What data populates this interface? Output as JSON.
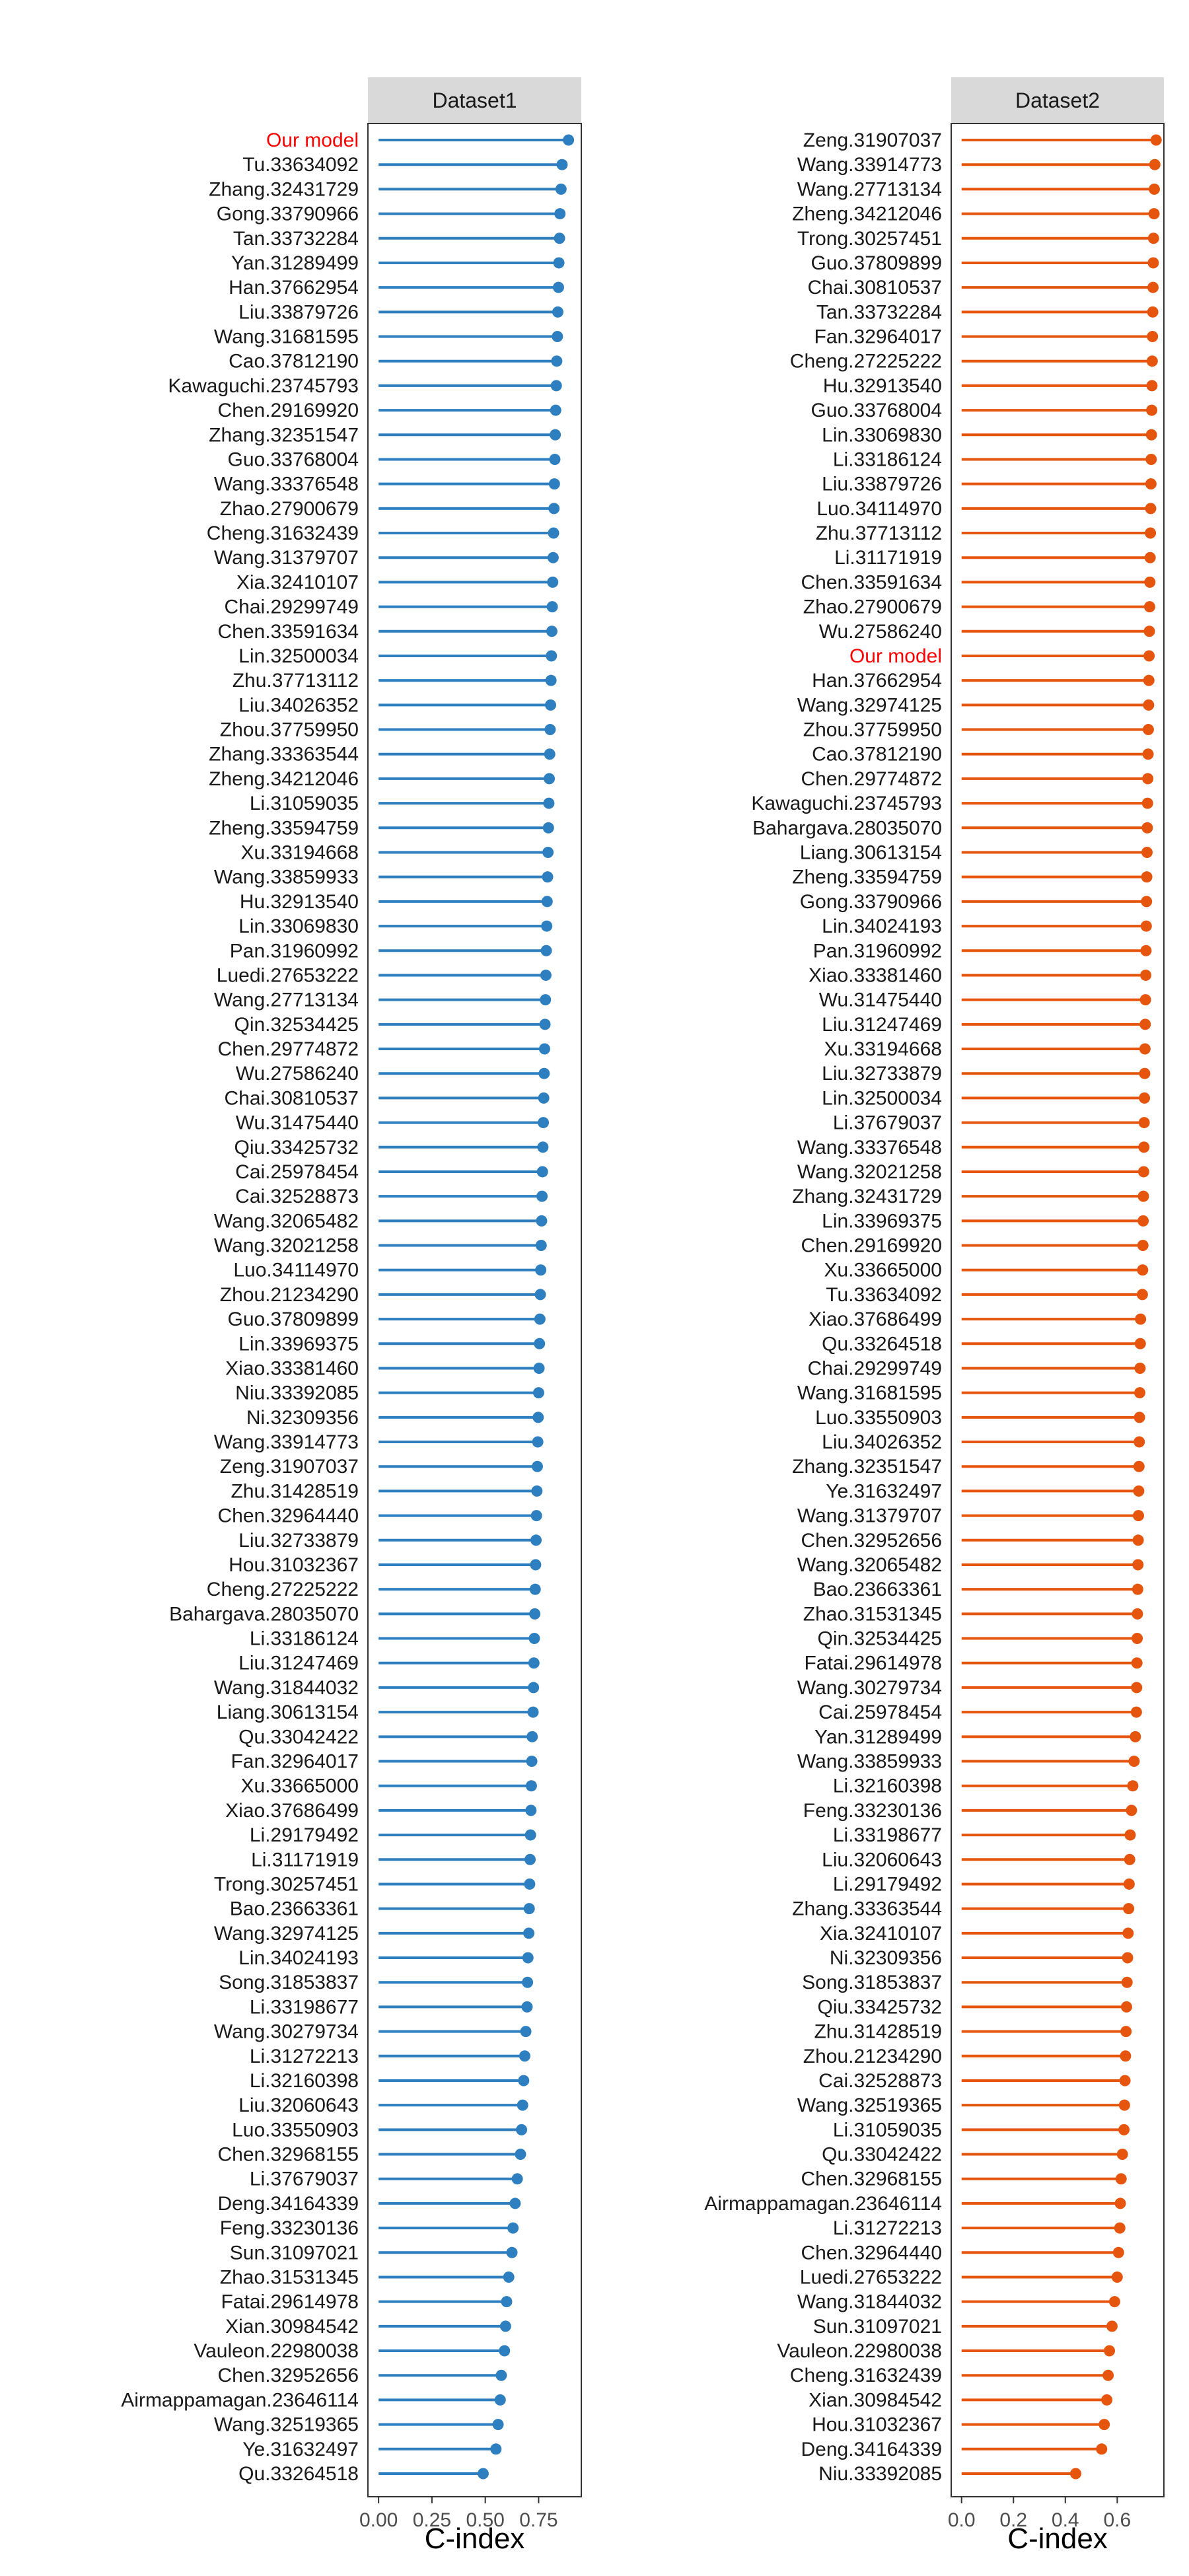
{
  "chart_data": [
    {
      "type": "lollipop",
      "title": "Dataset1",
      "xlabel": "C-index",
      "ylabel": "",
      "xlim": [
        -0.05,
        0.95
      ],
      "xticks": [
        0.0,
        0.25,
        0.5,
        0.75
      ],
      "xtick_labels": [
        "0.00",
        "0.25",
        "0.50",
        "0.75"
      ],
      "color": "#2e7fbf",
      "highlight_color": "#ff0000",
      "highlight_label": "Our model",
      "labels": [
        "Our model",
        "Tu.33634092",
        "Zhang.32431729",
        "Gong.33790966",
        "Tan.33732284",
        "Yan.31289499",
        "Han.37662954",
        "Liu.33879726",
        "Wang.31681595",
        "Cao.37812190",
        "Kawaguchi.23745793",
        "Chen.29169920",
        "Zhang.32351547",
        "Guo.33768004",
        "Wang.33376548",
        "Zhao.27900679",
        "Cheng.31632439",
        "Wang.31379707",
        "Xia.32410107",
        "Chai.29299749",
        "Chen.33591634",
        "Lin.32500034",
        "Zhu.37713112",
        "Liu.34026352",
        "Zhou.37759950",
        "Zhang.33363544",
        "Zheng.34212046",
        "Li.31059035",
        "Zheng.33594759",
        "Xu.33194668",
        "Wang.33859933",
        "Hu.32913540",
        "Lin.33069830",
        "Pan.31960992",
        "Luedi.27653222",
        "Wang.27713134",
        "Qin.32534425",
        "Chen.29774872",
        "Wu.27586240",
        "Chai.30810537",
        "Wu.31475440",
        "Qiu.33425732",
        "Cai.25978454",
        "Cai.32528873",
        "Wang.32065482",
        "Wang.32021258",
        "Luo.34114970",
        "Zhou.21234290",
        "Guo.37809899",
        "Lin.33969375",
        "Xiao.33381460",
        "Niu.33392085",
        "Ni.32309356",
        "Wang.33914773",
        "Zeng.31907037",
        "Zhu.31428519",
        "Chen.32964440",
        "Liu.32733879",
        "Hou.31032367",
        "Cheng.27225222",
        "Bahargava.28035070",
        "Li.33186124",
        "Liu.31247469",
        "Wang.31844032",
        "Liang.30613154",
        "Qu.33042422",
        "Fan.32964017",
        "Xu.33665000",
        "Xiao.37686499",
        "Li.29179492",
        "Li.31171919",
        "Trong.30257451",
        "Bao.23663361",
        "Wang.32974125",
        "Lin.34024193",
        "Song.31853837",
        "Li.33198677",
        "Wang.30279734",
        "Li.31272213",
        "Li.32160398",
        "Liu.32060643",
        "Luo.33550903",
        "Chen.32968155",
        "Li.37679037",
        "Deng.34164339",
        "Feng.33230136",
        "Sun.31097021",
        "Zhao.31531345",
        "Fatai.29614978",
        "Xian.30984542",
        "Vauleon.22980038",
        "Chen.32952656",
        "Airmappamagan.23646114",
        "Wang.32519365",
        "Ye.31632497",
        "Qu.33264518"
      ],
      "values": [
        0.89,
        0.86,
        0.855,
        0.85,
        0.848,
        0.845,
        0.843,
        0.84,
        0.838,
        0.835,
        0.833,
        0.83,
        0.828,
        0.826,
        0.824,
        0.822,
        0.82,
        0.818,
        0.816,
        0.814,
        0.812,
        0.81,
        0.808,
        0.806,
        0.804,
        0.802,
        0.8,
        0.798,
        0.796,
        0.794,
        0.792,
        0.79,
        0.788,
        0.786,
        0.784,
        0.782,
        0.78,
        0.778,
        0.776,
        0.774,
        0.772,
        0.77,
        0.768,
        0.766,
        0.764,
        0.762,
        0.76,
        0.758,
        0.756,
        0.754,
        0.752,
        0.75,
        0.748,
        0.746,
        0.744,
        0.742,
        0.74,
        0.738,
        0.736,
        0.734,
        0.732,
        0.73,
        0.728,
        0.726,
        0.724,
        0.72,
        0.718,
        0.716,
        0.714,
        0.712,
        0.71,
        0.708,
        0.706,
        0.704,
        0.7,
        0.698,
        0.696,
        0.69,
        0.685,
        0.68,
        0.675,
        0.67,
        0.665,
        0.65,
        0.64,
        0.63,
        0.625,
        0.61,
        0.6,
        0.595,
        0.59,
        0.575,
        0.57,
        0.56,
        0.55,
        0.49
      ]
    },
    {
      "type": "lollipop",
      "title": "Dataset2",
      "xlabel": "C-index",
      "ylabel": "",
      "xlim": [
        -0.04,
        0.78
      ],
      "xticks": [
        0.0,
        0.2,
        0.4,
        0.6
      ],
      "xtick_labels": [
        "0.0",
        "0.2",
        "0.4",
        "0.6"
      ],
      "color": "#e6550d",
      "highlight_color": "#ff0000",
      "highlight_label": "Our model",
      "labels": [
        "Zeng.31907037",
        "Wang.33914773",
        "Wang.27713134",
        "Zheng.34212046",
        "Trong.30257451",
        "Guo.37809899",
        "Chai.30810537",
        "Tan.33732284",
        "Fan.32964017",
        "Cheng.27225222",
        "Hu.32913540",
        "Guo.33768004",
        "Lin.33069830",
        "Li.33186124",
        "Liu.33879726",
        "Luo.34114970",
        "Zhu.37713112",
        "Li.31171919",
        "Chen.33591634",
        "Zhao.27900679",
        "Wu.27586240",
        "Our model",
        "Han.37662954",
        "Wang.32974125",
        "Zhou.37759950",
        "Cao.37812190",
        "Chen.29774872",
        "Kawaguchi.23745793",
        "Bahargava.28035070",
        "Liang.30613154",
        "Zheng.33594759",
        "Gong.33790966",
        "Lin.34024193",
        "Pan.31960992",
        "Xiao.33381460",
        "Wu.31475440",
        "Liu.31247469",
        "Xu.33194668",
        "Liu.32733879",
        "Lin.32500034",
        "Li.37679037",
        "Wang.33376548",
        "Wang.32021258",
        "Zhang.32431729",
        "Lin.33969375",
        "Chen.29169920",
        "Xu.33665000",
        "Tu.33634092",
        "Xiao.37686499",
        "Qu.33264518",
        "Chai.29299749",
        "Wang.31681595",
        "Luo.33550903",
        "Liu.34026352",
        "Zhang.32351547",
        "Ye.31632497",
        "Wang.31379707",
        "Chen.32952656",
        "Wang.32065482",
        "Bao.23663361",
        "Zhao.31531345",
        "Qin.32534425",
        "Fatai.29614978",
        "Wang.30279734",
        "Cai.25978454",
        "Yan.31289499",
        "Wang.33859933",
        "Li.32160398",
        "Feng.33230136",
        "Li.33198677",
        "Liu.32060643",
        "Li.29179492",
        "Zhang.33363544",
        "Xia.32410107",
        "Ni.32309356",
        "Song.31853837",
        "Qiu.33425732",
        "Zhu.31428519",
        "Zhou.21234290",
        "Cai.32528873",
        "Wang.32519365",
        "Li.31059035",
        "Qu.33042422",
        "Chen.32968155",
        "Airmappamagan.23646114",
        "Li.31272213",
        "Chen.32964440",
        "Luedi.27653222",
        "Wang.31844032",
        "Sun.31097021",
        "Vauleon.22980038",
        "Cheng.31632439",
        "Xian.30984542",
        "Hou.31032367",
        "Deng.34164339",
        "Niu.33392085"
      ],
      "values": [
        0.75,
        0.745,
        0.743,
        0.742,
        0.74,
        0.739,
        0.738,
        0.737,
        0.736,
        0.735,
        0.734,
        0.733,
        0.732,
        0.731,
        0.73,
        0.729,
        0.728,
        0.727,
        0.726,
        0.725,
        0.724,
        0.723,
        0.722,
        0.721,
        0.72,
        0.719,
        0.718,
        0.717,
        0.716,
        0.715,
        0.714,
        0.713,
        0.712,
        0.711,
        0.71,
        0.709,
        0.708,
        0.707,
        0.706,
        0.705,
        0.704,
        0.703,
        0.702,
        0.701,
        0.7,
        0.699,
        0.698,
        0.697,
        0.69,
        0.689,
        0.688,
        0.687,
        0.686,
        0.685,
        0.684,
        0.683,
        0.682,
        0.681,
        0.68,
        0.679,
        0.678,
        0.677,
        0.676,
        0.675,
        0.674,
        0.67,
        0.665,
        0.66,
        0.655,
        0.65,
        0.648,
        0.646,
        0.644,
        0.642,
        0.64,
        0.638,
        0.636,
        0.634,
        0.632,
        0.63,
        0.628,
        0.626,
        0.62,
        0.615,
        0.612,
        0.61,
        0.605,
        0.6,
        0.59,
        0.58,
        0.57,
        0.565,
        0.56,
        0.55,
        0.54,
        0.44
      ]
    }
  ]
}
